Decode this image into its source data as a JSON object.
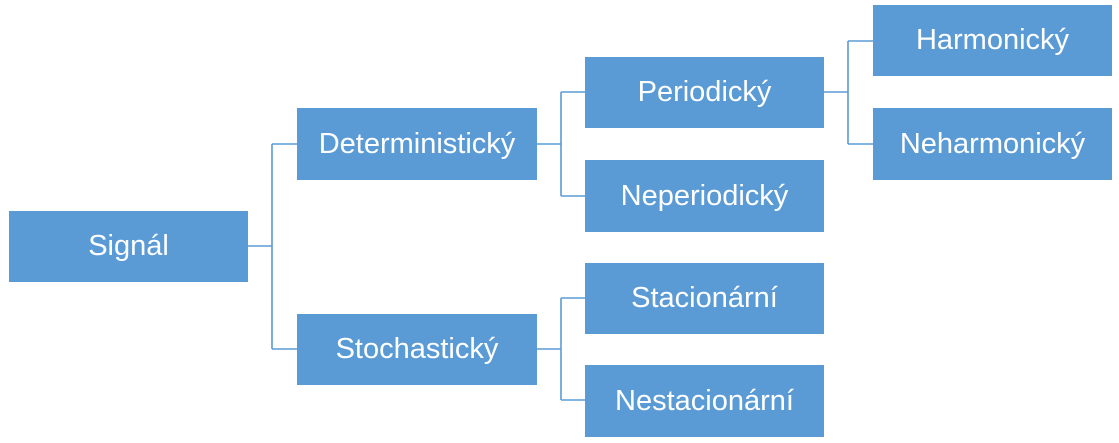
{
  "diagram": {
    "nodes": {
      "root": "Signál",
      "deterministic": "Deterministický",
      "stochastic": "Stochastický",
      "periodic": "Periodický",
      "nonperiodic": "Neperiodický",
      "harmonic": "Harmonický",
      "nonharmonic": "Neharmonický",
      "stationary": "Stacionární",
      "nonstationary": "Nestacionární"
    },
    "colors": {
      "box": "#5b9bd5",
      "text": "#ffffff",
      "line": "#5b9bd5"
    },
    "edges": [
      [
        "root",
        "deterministic"
      ],
      [
        "root",
        "stochastic"
      ],
      [
        "deterministic",
        "periodic"
      ],
      [
        "deterministic",
        "nonperiodic"
      ],
      [
        "periodic",
        "harmonic"
      ],
      [
        "periodic",
        "nonharmonic"
      ],
      [
        "stochastic",
        "stationary"
      ],
      [
        "stochastic",
        "nonstationary"
      ]
    ]
  }
}
